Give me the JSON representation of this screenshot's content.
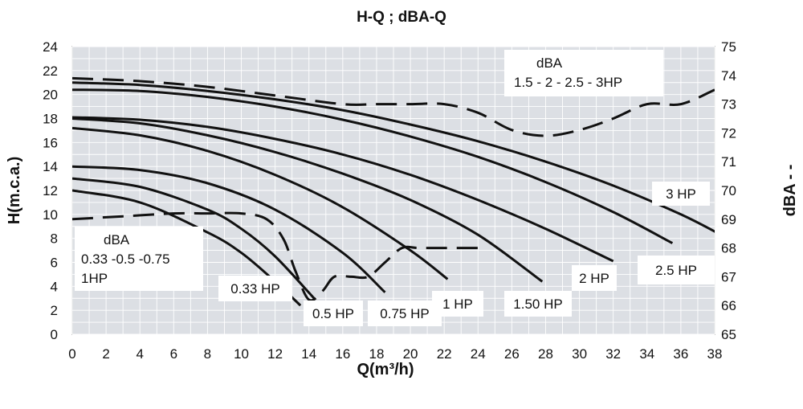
{
  "chart_data": {
    "type": "line",
    "title": "H-Q ; dBA-Q",
    "xlabel": "Q(m³/h)",
    "ylabel": "H(m.c.a.)",
    "y2label": "dBA - -",
    "xlim": [
      0,
      38
    ],
    "ylim": [
      0,
      24
    ],
    "y2lim": [
      65,
      75
    ],
    "x_ticks": [
      "0",
      "2",
      "4",
      "6",
      "8",
      "10",
      "12",
      "14",
      "16",
      "18",
      "20",
      "22",
      "24",
      "26",
      "28",
      "30",
      "32",
      "34",
      "36",
      "38"
    ],
    "y_ticks": [
      "0",
      "2",
      "4",
      "6",
      "8",
      "10",
      "12",
      "14",
      "16",
      "18",
      "20",
      "22",
      "24"
    ],
    "y2_ticks": [
      "65",
      "66",
      "67",
      "68",
      "69",
      "70",
      "71",
      "72",
      "73",
      "74",
      "75"
    ],
    "grid": true,
    "series": [
      {
        "name": "0.33 HP",
        "style": "solid",
        "x": [
          0,
          4,
          8,
          10,
          12,
          13.5
        ],
        "y": [
          12.0,
          11.0,
          8.5,
          6.8,
          4.4,
          2.4
        ]
      },
      {
        "name": "0.5 HP",
        "style": "solid",
        "x": [
          0,
          4,
          8,
          10,
          12,
          14.3
        ],
        "y": [
          13.0,
          12.3,
          10.4,
          8.8,
          6.5,
          3.0
        ]
      },
      {
        "name": "0.75 HP",
        "style": "solid",
        "x": [
          0,
          4,
          8,
          12,
          16,
          18.5
        ],
        "y": [
          14.0,
          13.7,
          12.6,
          10.4,
          6.8,
          3.5
        ]
      },
      {
        "name": "1 HP",
        "style": "solid",
        "x": [
          0,
          4,
          8,
          12,
          16,
          20,
          22.2
        ],
        "y": [
          17.2,
          16.6,
          15.3,
          13.3,
          10.6,
          7.0,
          4.6
        ]
      },
      {
        "name": "1.50 HP",
        "style": "solid",
        "x": [
          0,
          4,
          8,
          12,
          16,
          20,
          24,
          27.8
        ],
        "y": [
          18.0,
          17.6,
          16.6,
          15.2,
          13.4,
          11.2,
          8.3,
          4.4
        ]
      },
      {
        "name": "2 HP",
        "style": "solid",
        "x": [
          0,
          4,
          8,
          12,
          16,
          20,
          24,
          28,
          32
        ],
        "y": [
          18.1,
          17.9,
          17.3,
          16.3,
          15.0,
          13.3,
          11.2,
          8.8,
          6.1
        ]
      },
      {
        "name": "2.5 HP",
        "style": "solid",
        "x": [
          0,
          4,
          8,
          12,
          16,
          20,
          24,
          28,
          32,
          35.5
        ],
        "y": [
          20.4,
          20.3,
          19.8,
          19.0,
          17.9,
          16.5,
          14.8,
          12.7,
          10.2,
          7.6
        ]
      },
      {
        "name": "3 HP",
        "style": "solid",
        "x": [
          0,
          4,
          8,
          12,
          16,
          20,
          24,
          28,
          32,
          36,
          38.5
        ],
        "y": [
          21.0,
          20.8,
          20.3,
          19.6,
          18.7,
          17.5,
          16.1,
          14.4,
          12.4,
          10.0,
          8.2
        ]
      },
      {
        "name": "dBA 0.33 -0.5 -0.75 1HP",
        "style": "dashed",
        "axis": "right",
        "x": [
          0,
          3,
          6,
          8,
          10,
          11.5,
          12.5,
          13.2,
          14,
          14.8,
          15.5,
          16.5,
          17.5,
          18.5,
          19.5,
          20.5,
          22,
          24.5
        ],
        "y": [
          69.0,
          69.1,
          69.2,
          69.2,
          69.2,
          69.0,
          68.3,
          67.2,
          66.2,
          66.5,
          67.0,
          67.0,
          67.0,
          67.5,
          68.0,
          68.0,
          68.0,
          68.0
        ]
      },
      {
        "name": "dBA 1.5 - 2 - 2.5 - 3HP",
        "style": "dashed",
        "axis": "right",
        "x": [
          0,
          4,
          8,
          12,
          16,
          18,
          20,
          22,
          24,
          26,
          28,
          30,
          32,
          34,
          36,
          38
        ],
        "y": [
          73.9,
          73.8,
          73.6,
          73.3,
          73.0,
          73.0,
          73.0,
          73.0,
          72.7,
          72.1,
          71.9,
          72.1,
          72.5,
          73.0,
          73.0,
          73.5
        ]
      }
    ],
    "series_labels": [
      "0.33 HP",
      "0.5 HP",
      "0.75 HP",
      "1 HP",
      "1.50 HP",
      "2 HP",
      "2.5 HP",
      "3 HP"
    ],
    "annotations": {
      "dba_high_title": "dBA",
      "dba_high_models": "1.5 - 2 - 2.5 - 3HP",
      "dba_low_title": "dBA",
      "dba_low_models_1": "0.33 -0.5 -0.75",
      "dba_low_models_2": "1HP"
    },
    "colors": {
      "plot_background": "#dcdfe4",
      "grid": "#ffffff",
      "line": "#111111",
      "label_box": "#ffffff"
    }
  }
}
